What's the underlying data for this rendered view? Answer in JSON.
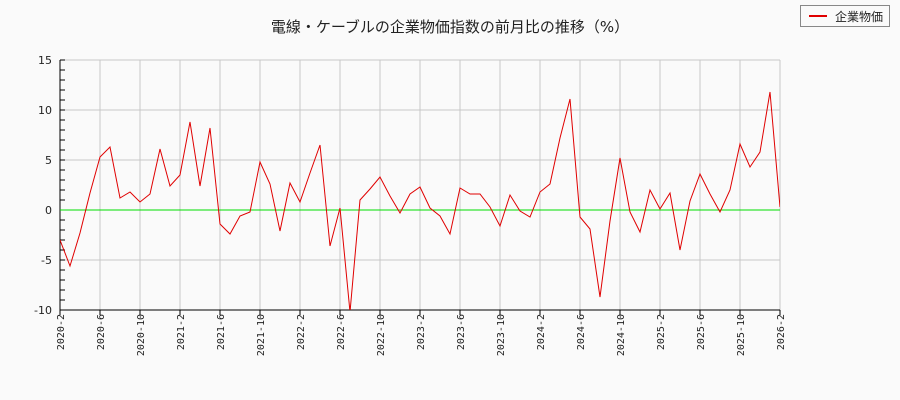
{
  "title": "電線・ケーブルの企業物価指数の前月比の推移（%）",
  "legend": {
    "label": "企業物価",
    "color": "#e00000"
  },
  "chart_data": {
    "type": "line",
    "title": "電線・ケーブルの企業物価指数の前月比の推移（%）",
    "xlabel": "",
    "ylabel": "",
    "ylim": [
      -10,
      15
    ],
    "yticks": [
      15,
      10,
      5,
      0,
      -5,
      -10
    ],
    "grid": true,
    "legend_position": "top-right",
    "zero_line_color": "#00dd00",
    "xtick_labels": [
      "2020-2",
      "2020-6",
      "2020-10",
      "2021-2",
      "2021-6",
      "2021-10",
      "2022-2",
      "2022-6",
      "2022-10",
      "2023-2",
      "2023-6",
      "2023-10",
      "2024-2",
      "2024-6",
      "2024-10",
      "2025-2",
      "2025-6",
      "2025-10",
      "2026-2"
    ],
    "x": [
      "2020-2",
      "2020-3",
      "2020-4",
      "2020-5",
      "2020-6",
      "2020-7",
      "2020-8",
      "2020-9",
      "2020-10",
      "2020-11",
      "2020-12",
      "2021-1",
      "2021-2",
      "2021-3",
      "2021-4",
      "2021-5",
      "2021-6",
      "2021-7",
      "2021-8",
      "2021-9",
      "2021-10",
      "2021-11",
      "2021-12",
      "2022-1",
      "2022-2",
      "2022-3",
      "2022-4",
      "2022-5",
      "2022-6",
      "2022-7",
      "2022-8",
      "2022-9",
      "2022-10",
      "2022-11",
      "2022-12",
      "2023-1",
      "2023-2",
      "2023-3",
      "2023-4",
      "2023-5",
      "2023-6",
      "2023-7",
      "2023-8",
      "2023-9",
      "2023-10",
      "2023-11",
      "2023-12",
      "2024-1",
      "2024-2",
      "2024-3",
      "2024-4",
      "2024-5",
      "2024-6",
      "2024-7",
      "2024-8",
      "2024-9",
      "2024-10",
      "2024-11",
      "2024-12",
      "2025-1",
      "2025-2",
      "2025-3",
      "2025-4",
      "2025-5",
      "2025-6",
      "2025-7",
      "2025-8",
      "2025-9",
      "2025-10",
      "2025-11",
      "2025-12",
      "2026-1",
      "2026-2"
    ],
    "series": [
      {
        "name": "企業物価",
        "color": "#e00000",
        "values": [
          -3.0,
          -5.6,
          -2.3,
          1.7,
          5.3,
          6.3,
          1.2,
          1.8,
          0.8,
          1.6,
          6.1,
          2.4,
          3.5,
          8.8,
          2.4,
          8.2,
          -1.4,
          -2.4,
          -0.6,
          -0.2,
          4.8,
          2.6,
          -2.1,
          2.7,
          0.8,
          3.7,
          6.5,
          -3.6,
          0.2,
          -10.2,
          1.0,
          2.1,
          3.3,
          1.4,
          -0.3,
          1.6,
          2.3,
          0.2,
          -0.6,
          -2.4,
          2.2,
          1.6,
          1.6,
          0.3,
          -1.6,
          1.5,
          -0.1,
          -0.7,
          1.8,
          2.6,
          7.2,
          11.1,
          -0.7,
          -1.9,
          -8.7,
          -1.1,
          5.2,
          -0.2,
          -2.2,
          2.0,
          0.1,
          1.7,
          -4.0,
          0.9,
          3.6,
          1.6,
          -0.2,
          2.0,
          6.6,
          4.3,
          5.8,
          11.8,
          0.3
        ]
      }
    ]
  }
}
